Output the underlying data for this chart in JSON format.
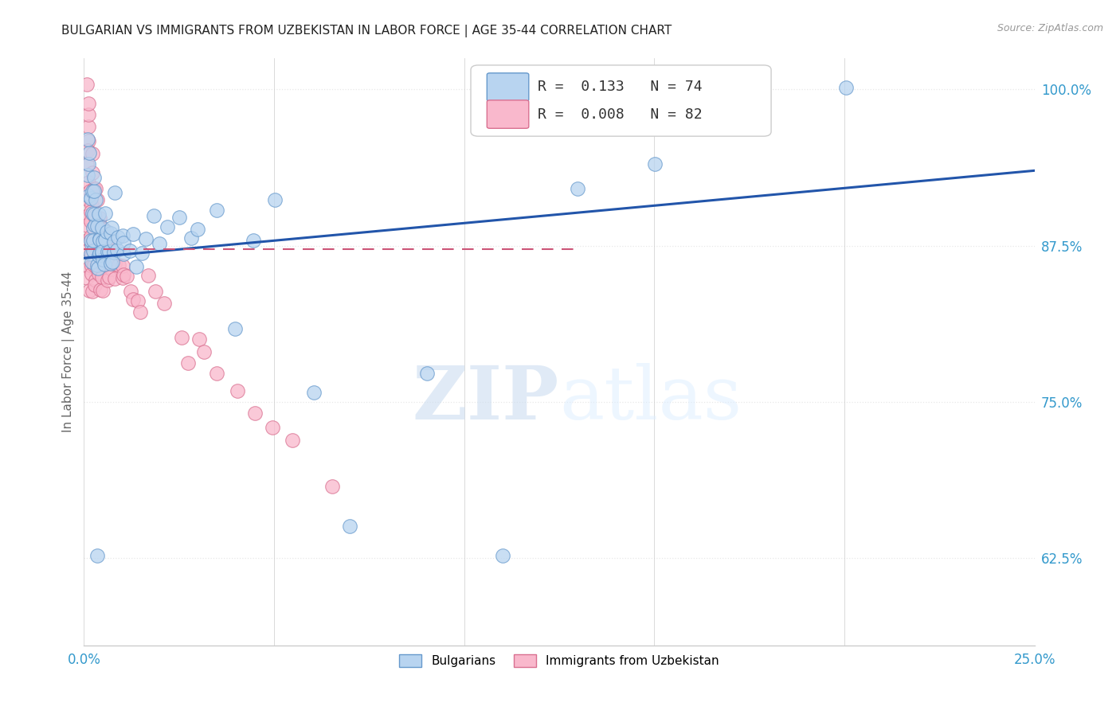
{
  "title": "BULGARIAN VS IMMIGRANTS FROM UZBEKISTAN IN LABOR FORCE | AGE 35-44 CORRELATION CHART",
  "source_text": "Source: ZipAtlas.com",
  "ylabel": "In Labor Force | Age 35-44",
  "watermark": "ZIPatlas",
  "series_labels": [
    "Bulgarians",
    "Immigrants from Uzbekistan"
  ],
  "series_fill_colors": [
    "#b8d4f0",
    "#f9b8cc"
  ],
  "series_edge_colors": [
    "#6699cc",
    "#d97090"
  ],
  "trend_line_color": "#2255aa",
  "trend_dash_color": "#cc5577",
  "xlim": [
    0.0,
    0.25
  ],
  "ylim": [
    0.555,
    1.025
  ],
  "xticks": [
    0.0,
    0.05,
    0.1,
    0.15,
    0.2,
    0.25
  ],
  "yticks": [
    0.625,
    0.75,
    0.875,
    1.0
  ],
  "xticklabels": [
    "0.0%",
    "",
    "",
    "",
    "",
    "25.0%"
  ],
  "yticklabels": [
    "62.5%",
    "75.0%",
    "87.5%",
    "100.0%"
  ],
  "bg_color": "#ffffff",
  "grid_color": "#e8e8e8",
  "title_color": "#222222",
  "source_color": "#999999",
  "tick_color": "#3399cc",
  "ylabel_color": "#666666",
  "title_fontsize": 11,
  "label_fontsize": 11,
  "tick_fontsize": 12,
  "legend_fontsize": 13,
  "blue_trend": [
    0.0,
    0.865,
    0.25,
    0.935
  ],
  "pink_trend": [
    0.0,
    0.872,
    0.13,
    0.872
  ],
  "bulgarians_x": [
    0.001,
    0.001,
    0.001,
    0.001,
    0.001,
    0.002,
    0.002,
    0.002,
    0.002,
    0.002,
    0.002,
    0.002,
    0.002,
    0.003,
    0.003,
    0.003,
    0.003,
    0.003,
    0.003,
    0.003,
    0.003,
    0.004,
    0.004,
    0.004,
    0.004,
    0.004,
    0.004,
    0.004,
    0.005,
    0.005,
    0.005,
    0.005,
    0.005,
    0.005,
    0.006,
    0.006,
    0.006,
    0.006,
    0.007,
    0.007,
    0.007,
    0.007,
    0.008,
    0.008,
    0.008,
    0.009,
    0.009,
    0.01,
    0.01,
    0.011,
    0.012,
    0.013,
    0.014,
    0.015,
    0.016,
    0.018,
    0.02,
    0.022,
    0.025,
    0.028,
    0.03,
    0.035,
    0.04,
    0.045,
    0.05,
    0.06,
    0.07,
    0.09,
    0.11,
    0.13,
    0.15,
    0.2,
    0.008,
    0.003
  ],
  "bulgarians_y": [
    0.92,
    0.93,
    0.94,
    0.95,
    0.96,
    0.88,
    0.89,
    0.9,
    0.91,
    0.92,
    0.87,
    0.88,
    0.86,
    0.87,
    0.88,
    0.89,
    0.9,
    0.91,
    0.92,
    0.93,
    0.86,
    0.87,
    0.88,
    0.89,
    0.9,
    0.88,
    0.86,
    0.87,
    0.87,
    0.88,
    0.89,
    0.9,
    0.86,
    0.87,
    0.87,
    0.88,
    0.89,
    0.86,
    0.87,
    0.88,
    0.89,
    0.86,
    0.87,
    0.88,
    0.86,
    0.87,
    0.88,
    0.87,
    0.88,
    0.88,
    0.87,
    0.88,
    0.86,
    0.87,
    0.88,
    0.9,
    0.88,
    0.89,
    0.9,
    0.88,
    0.89,
    0.9,
    0.81,
    0.88,
    0.91,
    0.76,
    0.65,
    0.77,
    0.63,
    0.92,
    0.94,
    1.0,
    0.92,
    0.63
  ],
  "uzbek_x": [
    0.001,
    0.001,
    0.001,
    0.001,
    0.001,
    0.001,
    0.001,
    0.001,
    0.001,
    0.001,
    0.001,
    0.001,
    0.001,
    0.001,
    0.001,
    0.001,
    0.001,
    0.002,
    0.002,
    0.002,
    0.002,
    0.002,
    0.002,
    0.002,
    0.002,
    0.002,
    0.002,
    0.002,
    0.003,
    0.003,
    0.003,
    0.003,
    0.003,
    0.003,
    0.003,
    0.003,
    0.003,
    0.004,
    0.004,
    0.004,
    0.004,
    0.004,
    0.004,
    0.004,
    0.005,
    0.005,
    0.005,
    0.005,
    0.005,
    0.005,
    0.006,
    0.006,
    0.006,
    0.006,
    0.007,
    0.007,
    0.007,
    0.008,
    0.008,
    0.008,
    0.009,
    0.009,
    0.01,
    0.01,
    0.011,
    0.012,
    0.013,
    0.014,
    0.015,
    0.017,
    0.019,
    0.021,
    0.025,
    0.028,
    0.03,
    0.032,
    0.035,
    0.04,
    0.045,
    0.05,
    0.055,
    0.065
  ],
  "uzbek_y": [
    0.96,
    0.97,
    0.98,
    0.99,
    1.0,
    0.95,
    0.93,
    0.94,
    0.92,
    0.91,
    0.9,
    0.88,
    0.89,
    0.87,
    0.86,
    0.85,
    0.84,
    0.95,
    0.93,
    0.92,
    0.91,
    0.9,
    0.89,
    0.88,
    0.87,
    0.86,
    0.85,
    0.84,
    0.92,
    0.91,
    0.9,
    0.89,
    0.88,
    0.87,
    0.86,
    0.85,
    0.84,
    0.9,
    0.89,
    0.88,
    0.87,
    0.86,
    0.85,
    0.84,
    0.89,
    0.88,
    0.87,
    0.86,
    0.85,
    0.84,
    0.88,
    0.87,
    0.86,
    0.85,
    0.87,
    0.86,
    0.85,
    0.87,
    0.86,
    0.85,
    0.86,
    0.85,
    0.86,
    0.85,
    0.85,
    0.84,
    0.83,
    0.83,
    0.82,
    0.85,
    0.84,
    0.83,
    0.8,
    0.78,
    0.8,
    0.79,
    0.77,
    0.76,
    0.74,
    0.73,
    0.72,
    0.68
  ]
}
